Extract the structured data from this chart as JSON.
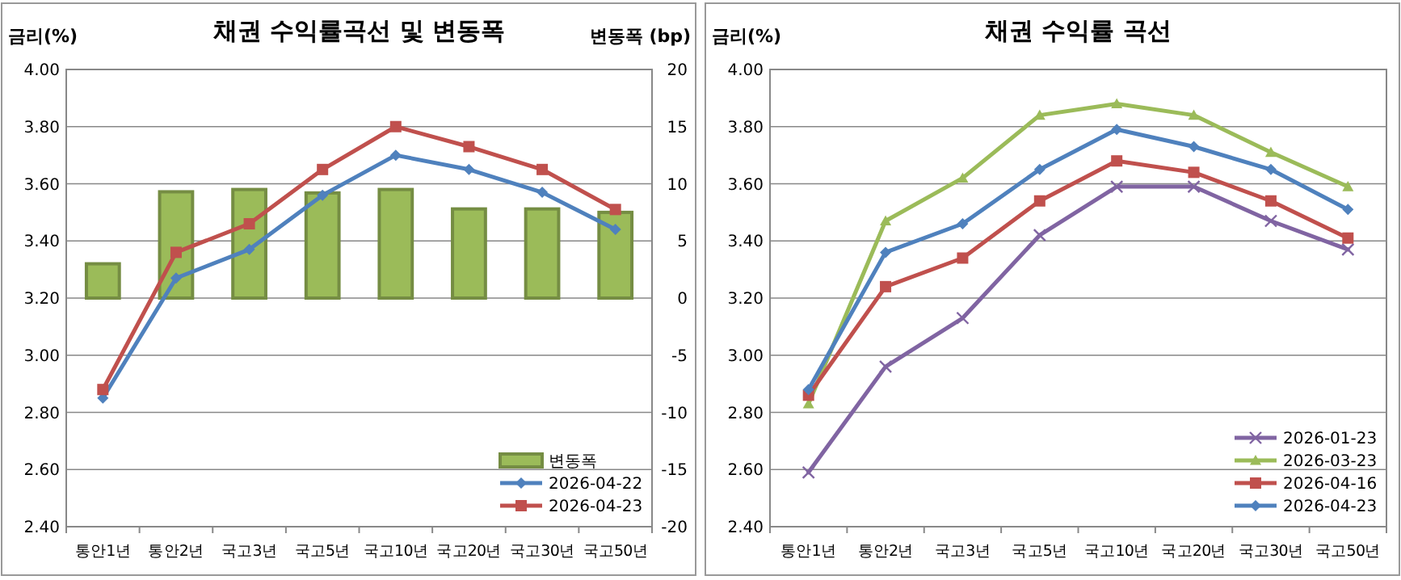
{
  "chart_data": [
    {
      "type": "line",
      "title": "채권 수익률곡선 및 변동폭",
      "ylabel": "금리(%)",
      "y2label": "변동폭 (bp)",
      "categories": [
        "통안1년",
        "통안2년",
        "국고3년",
        "국고5년",
        "국고10년",
        "국고20년",
        "국고30년",
        "국고50년"
      ],
      "series": [
        {
          "name": "변동폭",
          "type": "bar",
          "axis": "y2",
          "color": "#9bbb59",
          "values": [
            3,
            9.3,
            9.5,
            9.2,
            9.5,
            7.8,
            7.8,
            7.5
          ]
        },
        {
          "name": "2026-04-22",
          "color": "#4f81bd",
          "marker": "diamond",
          "values": [
            2.85,
            3.27,
            3.37,
            3.56,
            3.7,
            3.65,
            3.57,
            3.44
          ]
        },
        {
          "name": "2026-04-23",
          "color": "#c0504d",
          "marker": "square",
          "values": [
            2.88,
            3.36,
            3.46,
            3.65,
            3.8,
            3.73,
            3.65,
            3.51
          ]
        }
      ],
      "ylim": [
        2.4,
        4.0
      ],
      "yticks": [
        {
          "value": 2.4,
          "label": "2.40"
        },
        {
          "value": 2.6,
          "label": "2.60"
        },
        {
          "value": 2.8,
          "label": "2.80"
        },
        {
          "value": 3.0,
          "label": "3.00"
        },
        {
          "value": 3.2,
          "label": "3.20"
        },
        {
          "value": 3.4,
          "label": "3.40"
        },
        {
          "value": 3.6,
          "label": "3.60"
        },
        {
          "value": 3.8,
          "label": "3.80"
        },
        {
          "value": 4.0,
          "label": "4.00"
        }
      ],
      "y2lim": [
        -20,
        20
      ],
      "y2ticks": [
        -20,
        -15,
        -10,
        -5,
        0,
        5,
        10,
        15,
        20
      ],
      "grid": "y",
      "legend": "bottom right"
    },
    {
      "type": "line",
      "title": "채권 수익률 곡선",
      "ylabel": "금리(%)",
      "categories": [
        "통안1년",
        "통안2년",
        "국고3년",
        "국고5년",
        "국고10년",
        "국고20년",
        "국고30년",
        "국고50년"
      ],
      "series": [
        {
          "name": "2026-01-23",
          "color": "#8064a2",
          "marker": "cross",
          "values": [
            2.59,
            2.96,
            3.13,
            3.42,
            3.59,
            3.59,
            3.47,
            3.37
          ]
        },
        {
          "name": "2026-03-23",
          "color": "#9bbb59",
          "marker": "triangle",
          "values": [
            2.83,
            3.47,
            3.62,
            3.84,
            3.88,
            3.84,
            3.71,
            3.59
          ]
        },
        {
          "name": "2026-04-16",
          "color": "#c0504d",
          "marker": "square",
          "values": [
            2.86,
            3.24,
            3.34,
            3.54,
            3.68,
            3.64,
            3.54,
            3.41
          ]
        },
        {
          "name": "2026-04-23",
          "color": "#4f81bd",
          "marker": "diamond",
          "values": [
            2.88,
            3.36,
            3.46,
            3.65,
            3.79,
            3.73,
            3.65,
            3.51
          ]
        }
      ],
      "ylim": [
        2.4,
        4.0
      ],
      "yticks": [
        {
          "value": 2.4,
          "label": "2.40"
        },
        {
          "value": 2.6,
          "label": "2.60"
        },
        {
          "value": 2.8,
          "label": "2.80"
        },
        {
          "value": 3.0,
          "label": "3.00"
        },
        {
          "value": 3.2,
          "label": "3.20"
        },
        {
          "value": 3.4,
          "label": "3.40"
        },
        {
          "value": 3.6,
          "label": "3.60"
        },
        {
          "value": 3.8,
          "label": "3.80"
        },
        {
          "value": 4.0,
          "label": "4.00"
        }
      ],
      "grid": "y",
      "legend": "bottom right"
    }
  ]
}
